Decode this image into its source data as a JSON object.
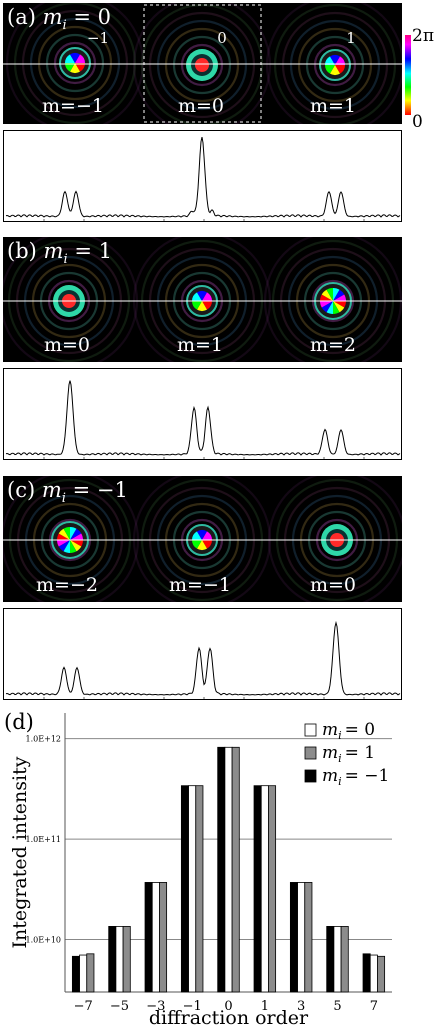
{
  "panels": [
    {
      "label": "(a)",
      "mi_text": "m",
      "mi_sub": "i",
      "mi_value": "= 0",
      "orders_top": [
        "−1",
        "0",
        "1"
      ],
      "m_labels": [
        "m=−1",
        "m=0",
        "m=1"
      ]
    },
    {
      "label": "(b)",
      "mi_text": "m",
      "mi_sub": "i",
      "mi_value": "= 1",
      "m_labels": [
        "m=0",
        "m=1",
        "m=2"
      ]
    },
    {
      "label": "(c)",
      "mi_text": "m",
      "mi_sub": "i",
      "mi_value": "= −1",
      "m_labels": [
        "m=−2",
        "m=−1",
        "m=0"
      ]
    }
  ],
  "colorbar": {
    "top": "2π",
    "bottom": "0"
  },
  "chart_data": {
    "type": "bar",
    "panel_label": "(d)",
    "xlabel": "diffraction order",
    "ylabel": "Integrated intensity",
    "yscale": "log",
    "ylim": [
      3000000000,
      1800000000000
    ],
    "y_ticks": [
      {
        "value": 10000000000,
        "label": "1.0E+10"
      },
      {
        "value": 100000000000,
        "label": "1.0E+11"
      },
      {
        "value": 1000000000000,
        "label": "1.0E+12"
      }
    ],
    "grid": "horizontal",
    "legend_position": "top-right",
    "categories": [
      "−7",
      "−5",
      "−3",
      "−1",
      "0",
      "1",
      "3",
      "5",
      "7"
    ],
    "series": [
      {
        "name": "m_i = 0",
        "legend": "= 0",
        "color": "#ffffff",
        "values": [
          7000000000,
          13500000000,
          37000000000,
          340000000000,
          820000000000,
          340000000000,
          37000000000,
          13500000000,
          7000000000
        ]
      },
      {
        "name": "m_i = 1",
        "legend": "= 1",
        "color": "#8c8c8c",
        "values": [
          7200000000,
          13500000000,
          37000000000,
          340000000000,
          820000000000,
          340000000000,
          37000000000,
          13500000000,
          6800000000
        ]
      },
      {
        "name": "m_i = −1",
        "legend": "= −1",
        "color": "#000000",
        "values": [
          6800000000,
          13500000000,
          37000000000,
          340000000000,
          820000000000,
          340000000000,
          37000000000,
          13500000000,
          7200000000
        ]
      }
    ]
  }
}
